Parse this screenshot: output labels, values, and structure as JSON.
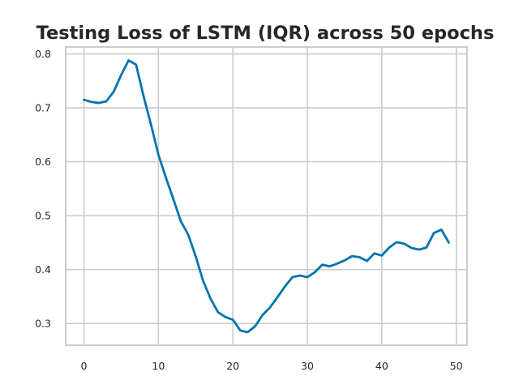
{
  "chart_data": {
    "type": "line",
    "title": "Testing Loss of LSTM (IQR) across 50 epochs",
    "xlabel": "",
    "ylabel": "",
    "xlim": [
      -2.45,
      51.45
    ],
    "ylim": [
      0.2597,
      0.8128
    ],
    "xticks": [
      0,
      10,
      20,
      30,
      40,
      50
    ],
    "yticks": [
      0.3,
      0.4,
      0.5,
      0.6,
      0.7,
      0.8
    ],
    "grid": true,
    "legend": "none",
    "series": [
      {
        "color": "#0173b2",
        "x": [
          0,
          1,
          2,
          3,
          4,
          5,
          6,
          7,
          8,
          9,
          10,
          11,
          12,
          13,
          14,
          15,
          16,
          17,
          18,
          19,
          20,
          21,
          22,
          23,
          24,
          25,
          26,
          27,
          28,
          29,
          30,
          31,
          32,
          33,
          34,
          35,
          36,
          37,
          38,
          39,
          40,
          41,
          42,
          43,
          44,
          45,
          46,
          47,
          48,
          49
        ],
        "values": [
          0.715,
          0.711,
          0.709,
          0.712,
          0.73,
          0.761,
          0.788,
          0.78,
          0.722,
          0.669,
          0.613,
          0.571,
          0.531,
          0.49,
          0.465,
          0.425,
          0.379,
          0.346,
          0.321,
          0.312,
          0.307,
          0.287,
          0.284,
          0.295,
          0.316,
          0.33,
          0.349,
          0.369,
          0.386,
          0.389,
          0.386,
          0.395,
          0.409,
          0.406,
          0.411,
          0.417,
          0.425,
          0.423,
          0.416,
          0.43,
          0.426,
          0.441,
          0.451,
          0.448,
          0.44,
          0.437,
          0.441,
          0.468,
          0.474,
          0.45
        ]
      }
    ]
  }
}
